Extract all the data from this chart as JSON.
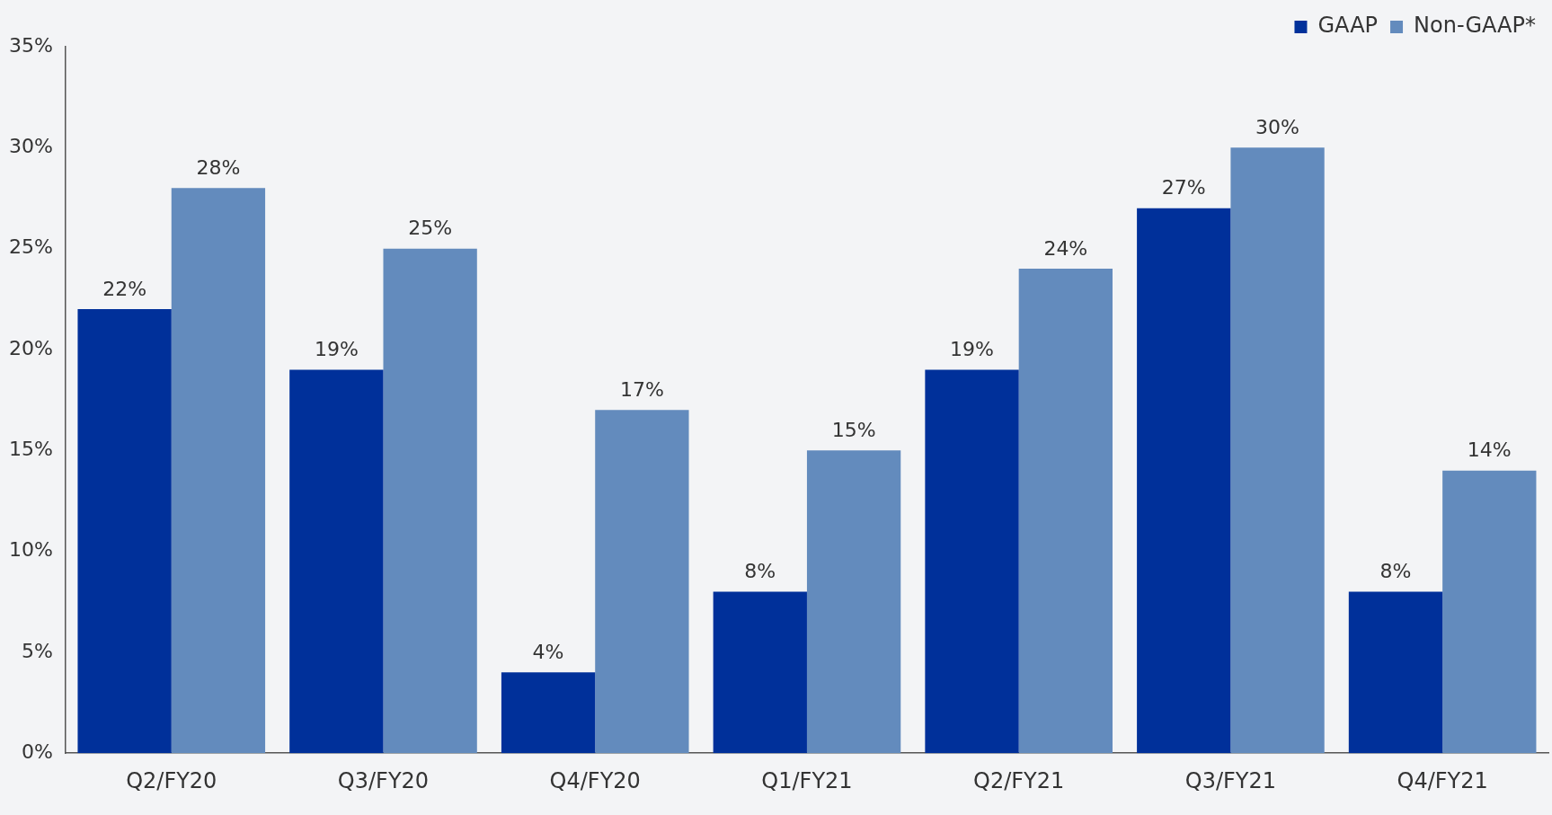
{
  "chart_data": {
    "type": "bar",
    "categories": [
      "Q2/FY20",
      "Q3/FY20",
      "Q4/FY20",
      "Q1/FY21",
      "Q2/FY21",
      "Q3/FY21",
      "Q4/FY21"
    ],
    "series": [
      {
        "name": "GAAP",
        "color": "#00309a",
        "values": [
          22,
          19,
          4,
          8,
          19,
          27,
          8
        ],
        "value_labels": [
          "22%",
          "19%",
          "4%",
          "8%",
          "19%",
          "27%",
          "8%"
        ]
      },
      {
        "name": "Non-GAAP*",
        "color": "#638bbd",
        "values": [
          28,
          25,
          17,
          15,
          24,
          30,
          14
        ],
        "value_labels": [
          "28%",
          "25%",
          "17%",
          "15%",
          "24%",
          "30%",
          "14%"
        ]
      }
    ],
    "ylim": [
      0,
      35
    ],
    "yticks": [
      {
        "value": 0,
        "label": "0%"
      },
      {
        "value": 5,
        "label": "5%"
      },
      {
        "value": 10,
        "label": "10%"
      },
      {
        "value": 15,
        "label": "15%"
      },
      {
        "value": 20,
        "label": "20%"
      },
      {
        "value": 25,
        "label": "25%"
      },
      {
        "value": 30,
        "label": "30%"
      },
      {
        "value": 35,
        "label": "35%"
      }
    ],
    "grid": false,
    "legend": "top right"
  }
}
